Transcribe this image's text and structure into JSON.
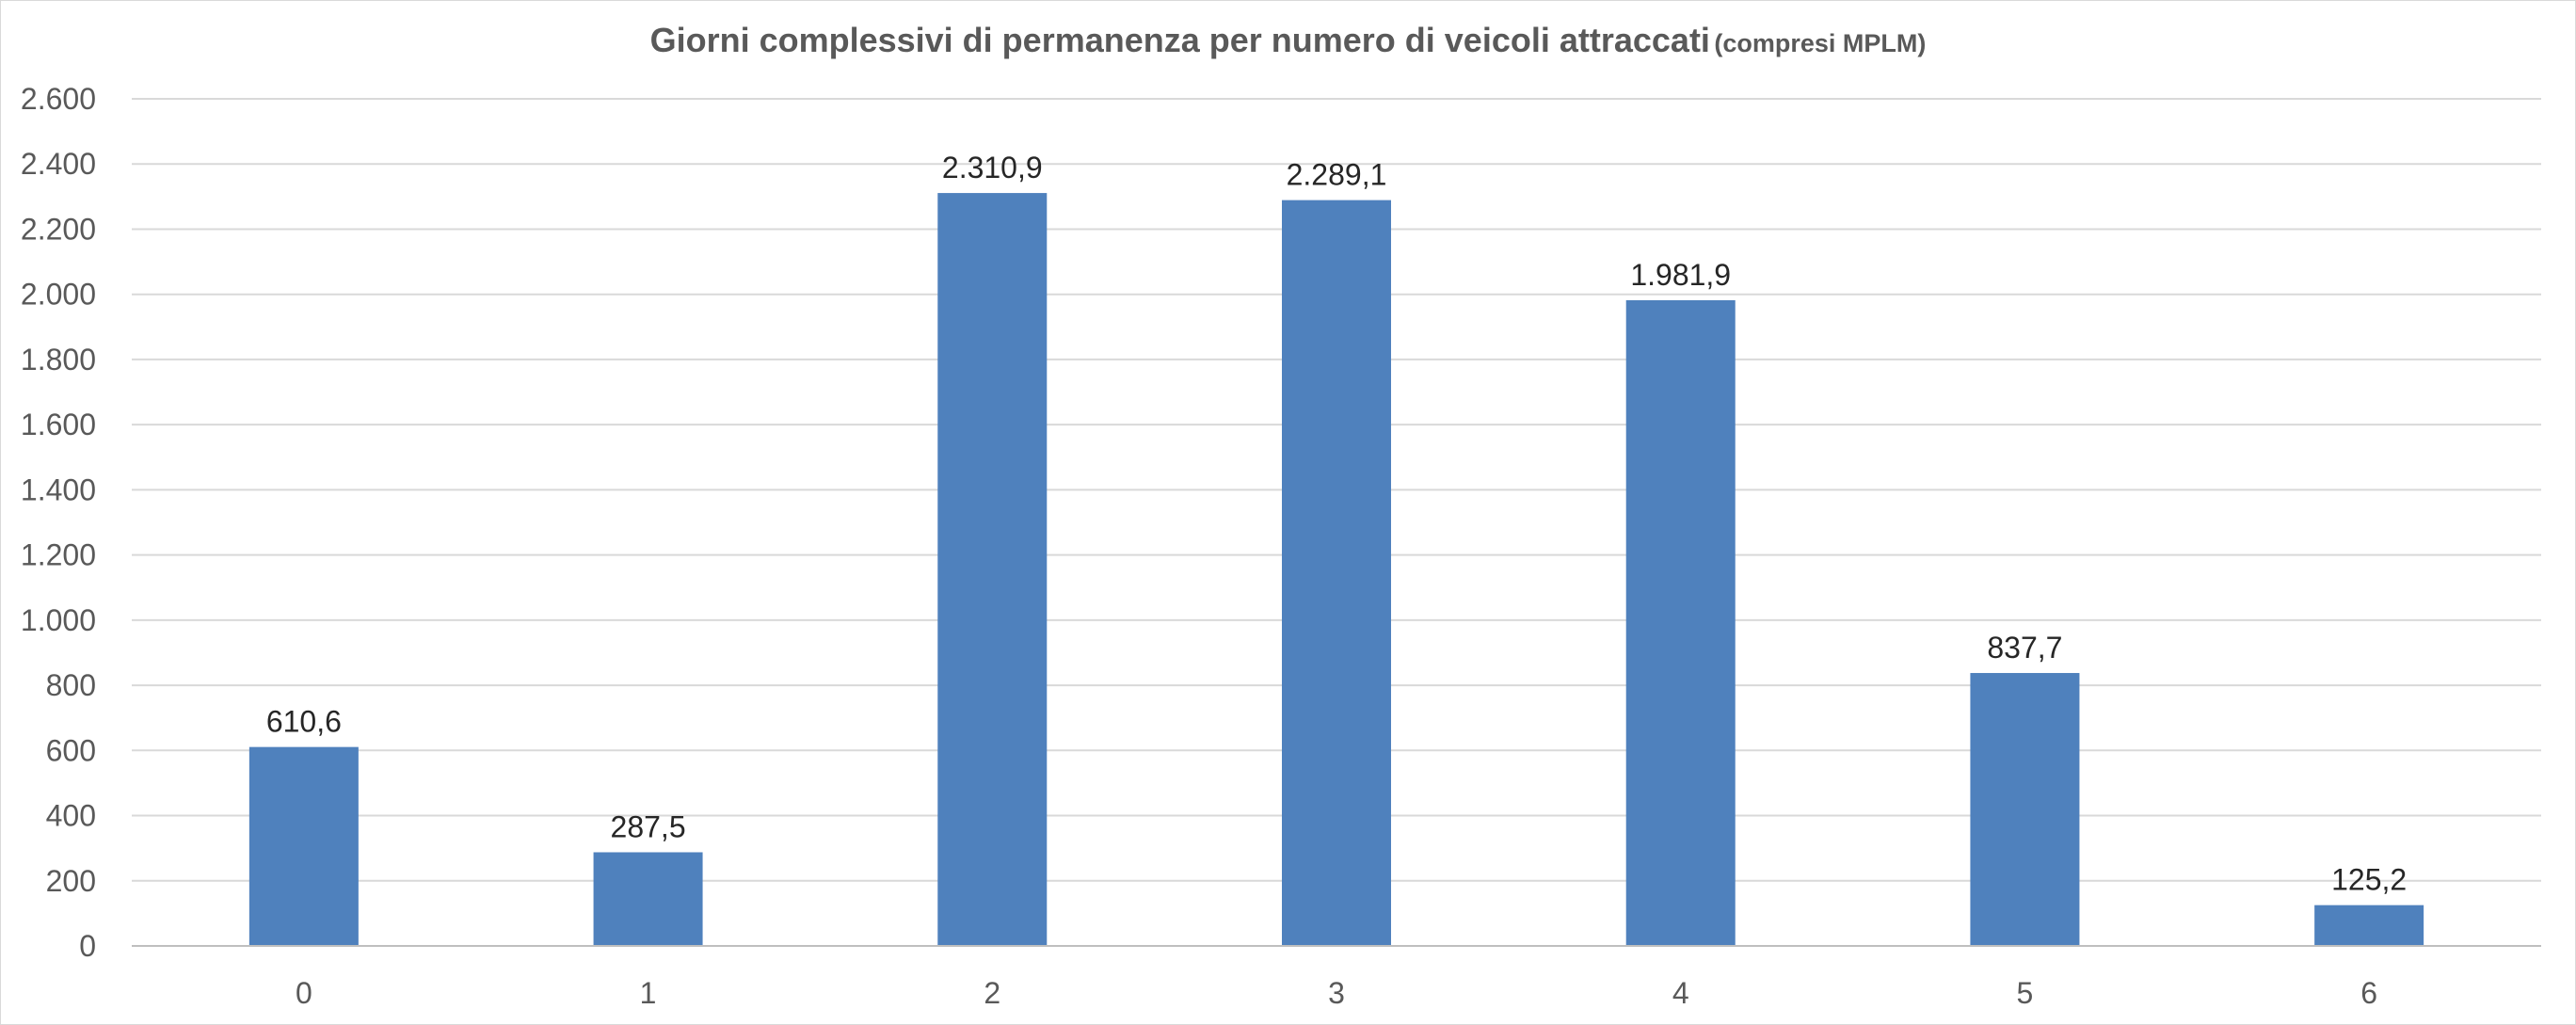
{
  "chart_data": {
    "type": "bar",
    "title": "Giorni complessivi di permanenza per numero di veicoli attraccati",
    "subtitle": "(compresi MPLM)",
    "xlabel": "",
    "ylabel": "",
    "categories": [
      "0",
      "1",
      "2",
      "3",
      "4",
      "5",
      "6"
    ],
    "values": [
      610.6,
      287.5,
      2310.9,
      2289.1,
      1981.9,
      837.7,
      125.2
    ],
    "data_labels": [
      "610,6",
      "287,5",
      "2.310,9",
      "2.289,1",
      "1.981,9",
      "837,7",
      "125,2"
    ],
    "ylim": [
      0,
      2600
    ],
    "y_ticks": [
      0,
      200,
      400,
      600,
      800,
      1000,
      1200,
      1400,
      1600,
      1800,
      2000,
      2200,
      2400,
      2600
    ],
    "y_tick_labels": [
      "0",
      "200",
      "400",
      "600",
      "800",
      "1.000",
      "1.200",
      "1.400",
      "1.600",
      "1.800",
      "2.000",
      "2.200",
      "2.400",
      "2.600"
    ],
    "grid": true,
    "legend": "none",
    "bar_color": "#4f81bd"
  }
}
